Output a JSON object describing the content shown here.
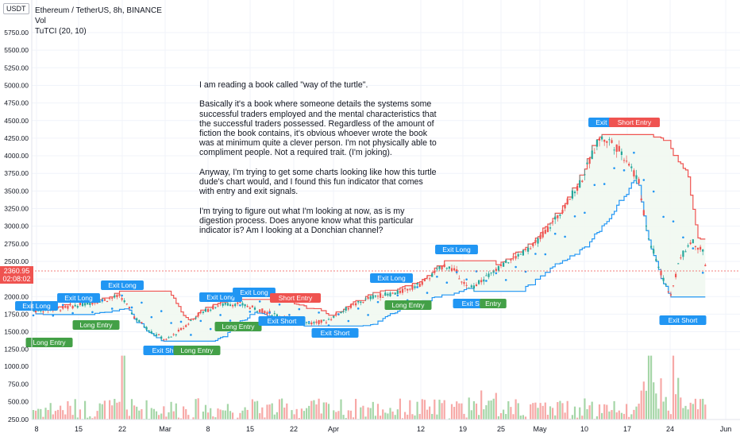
{
  "header": {
    "symbol": "Ethereum / TetherUS, 8h, BINANCE",
    "indicator_1": "Vol",
    "indicator_2": "TuTCI (20, 10)",
    "currency": "USDT"
  },
  "note": {
    "p1": "I am reading a book called \"way of the turtle\".",
    "p2": "Basically it's a book where someone details the systems some successful traders employed and the mental characteristics that the successful traders possessed. Regardless of the amount of fiction the book contains, it's obvious whoever wrote the book was at minimum quite a clever person. I'm not physically able to compliment people. Not a required trait. (I'm joking).",
    "p3": "Anyway, I'm trying to get some charts looking like how this turtle dude's chart would, and I found this fun indicator that comes with entry and exit signals.",
    "p4": "I'm trying to figure out what I'm looking at now, as is my digestion process. Does anyone know what this particular indicator is? Am I looking at a Donchian channel?"
  },
  "price_tag": {
    "price": "2360.95",
    "countdown": "02:08:02"
  },
  "colors": {
    "up": "#26a69a",
    "down": "#ef5350",
    "upper_band": "#ef5350",
    "lower_band": "#2196f3",
    "long_fill": "#e8f5e9",
    "short_fill": "#ffebee",
    "exit": "#2196f3",
    "entry_long": "#43a047",
    "entry_short": "#ef5350"
  },
  "chart_data": {
    "type": "candlestick",
    "price_ticks": [
      "5750.00",
      "5500.00",
      "5250.00",
      "5000.00",
      "4750.00",
      "4500.00",
      "4250.00",
      "4000.00",
      "3750.00",
      "3500.00",
      "3250.00",
      "3000.00",
      "2750.00",
      "2500.00",
      "2250.00",
      "2000.00",
      "1750.00",
      "1500.00",
      "1250.00"
    ],
    "volume_ticks": [
      "1000.00",
      "750.00",
      "500.00",
      "250.00"
    ],
    "x_ticks": [
      "8",
      "15",
      "22",
      "Mar",
      "8",
      "15",
      "22",
      "Apr",
      "12",
      "19",
      "25",
      "May",
      "10",
      "17",
      "24",
      "Jun"
    ],
    "signals": [
      {
        "label": "Exit Long"
      },
      {
        "label": "Long Entry"
      },
      {
        "label": "Exit Long"
      },
      {
        "label": "Long Entry"
      },
      {
        "label": "Exit Long"
      },
      {
        "label": "Exit Short"
      },
      {
        "label": "Long Entry"
      },
      {
        "label": "Exit Long"
      },
      {
        "label": "Long Entry"
      },
      {
        "label": "Exit Long"
      },
      {
        "label": "Short Entry"
      },
      {
        "label": "Exit Short"
      },
      {
        "label": "Exit Short"
      },
      {
        "label": "Exit Long"
      },
      {
        "label": "Long Entry"
      },
      {
        "label": "Exit Long"
      },
      {
        "label": "Exit Short"
      },
      {
        "label": "Entry"
      },
      {
        "label": "Exit Long"
      },
      {
        "label": "Short Entry"
      },
      {
        "label": "Exit Short"
      }
    ]
  }
}
